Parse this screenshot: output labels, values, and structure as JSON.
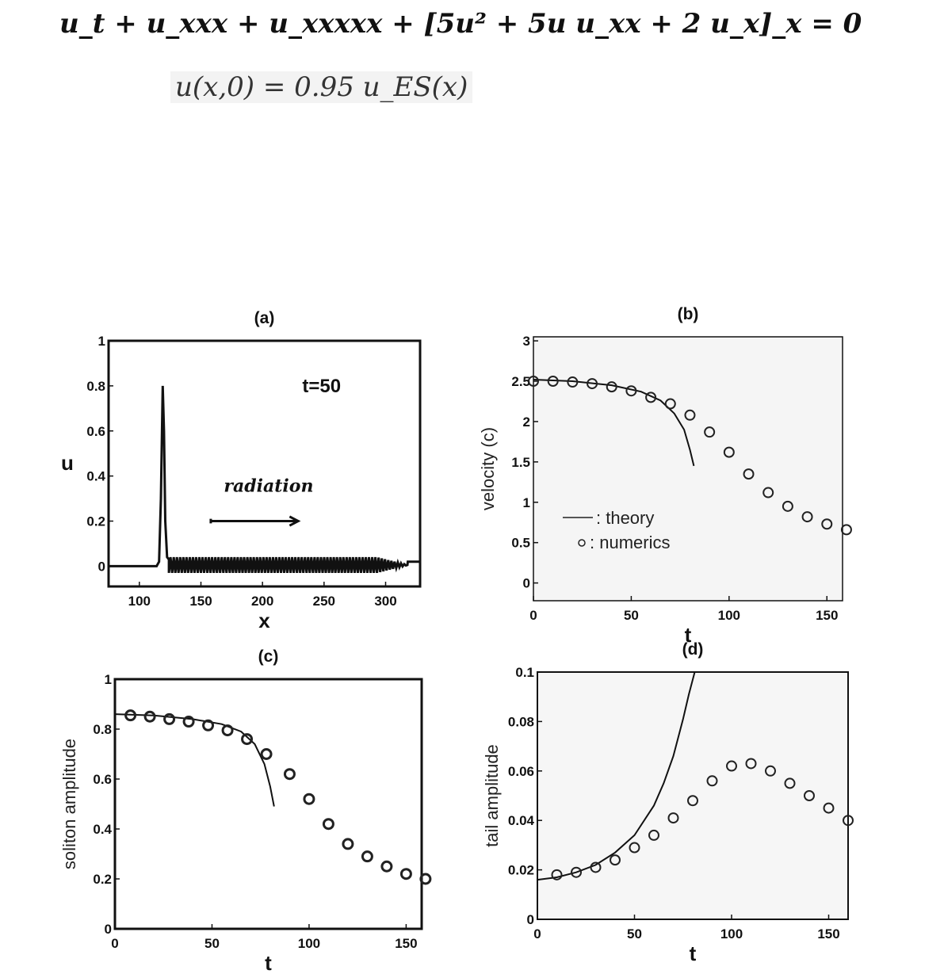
{
  "equations": {
    "pde": "u_t + u_xxx + u_xxxxx + [5u² + 5u u_xx + 2 u_x]_x = 0",
    "initial_condition": "u(x,0) = 0.95 u_ES(x)"
  },
  "chart_data": [
    {
      "id": "a",
      "type": "line",
      "title": "(a)",
      "xlabel": "x",
      "ylabel": "u",
      "xlim": [
        75,
        328
      ],
      "ylim": [
        -0.09,
        1
      ],
      "xticks": [
        100,
        150,
        200,
        250,
        300
      ],
      "yticks": [
        0,
        0.2,
        0.4,
        0.6,
        0.8,
        1
      ],
      "ytick_labels": [
        "0",
        "0.2",
        "0.4",
        "0.6",
        "0.8",
        "1"
      ],
      "annotations": [
        "t=50",
        "radiation"
      ],
      "series": [
        {
          "x": [
            75,
            114,
            116,
            117.5,
            119,
            120,
            121,
            122.5,
            124
          ],
          "y": [
            0,
            0,
            0.02,
            0.3,
            0.8,
            0.6,
            0.2,
            0.04,
            0.03
          ]
        }
      ],
      "radiation_oscillation": {
        "x_start": 124,
        "x_end": 318,
        "min": -0.03,
        "max": 0.04,
        "period": 2.6,
        "end_level": 0.02
      },
      "grid": false
    },
    {
      "id": "b",
      "type": "scatter",
      "title": "(b)",
      "xlabel": "t",
      "ylabel": "velocity (c)",
      "xlim": [
        0,
        158
      ],
      "ylim": [
        -0.22,
        3.05
      ],
      "xticks": [
        0,
        50,
        100,
        150
      ],
      "yticks": [
        0,
        0.5,
        1,
        1.5,
        2,
        2.5,
        3
      ],
      "ytick_labels": [
        "0",
        "0.5",
        "1",
        "1.5",
        "2",
        "2.5",
        "3"
      ],
      "legend": [
        ": theory",
        ": numerics"
      ],
      "legend_position": "bottom-left",
      "series": [
        {
          "name": "theory",
          "style": "line",
          "x": [
            0,
            20,
            40,
            55,
            65,
            72,
            77,
            80,
            82
          ],
          "y": [
            2.52,
            2.5,
            2.45,
            2.37,
            2.26,
            2.1,
            1.9,
            1.65,
            1.45
          ]
        },
        {
          "name": "numerics",
          "style": "circle",
          "x": [
            0,
            10,
            20,
            30,
            40,
            50,
            60,
            70,
            80,
            90,
            100,
            110,
            120,
            130,
            140,
            150,
            160
          ],
          "y": [
            2.5,
            2.5,
            2.49,
            2.47,
            2.43,
            2.38,
            2.3,
            2.22,
            2.08,
            1.87,
            1.62,
            1.35,
            1.12,
            0.95,
            0.82,
            0.73,
            0.66
          ]
        }
      ],
      "grid": false
    },
    {
      "id": "c",
      "type": "scatter",
      "title": "(c)",
      "xlabel": "t",
      "ylabel": "soliton amplitude",
      "xlim": [
        0,
        158
      ],
      "ylim": [
        0,
        1
      ],
      "xticks": [
        0,
        50,
        100,
        150
      ],
      "yticks": [
        0,
        0.2,
        0.4,
        0.6,
        0.8,
        1
      ],
      "ytick_labels": [
        "0",
        "0.2",
        "0.4",
        "0.6",
        "0.8",
        "1"
      ],
      "series": [
        {
          "name": "theory",
          "style": "line",
          "x": [
            0,
            20,
            40,
            55,
            65,
            72,
            77,
            80,
            82
          ],
          "y": [
            0.86,
            0.855,
            0.84,
            0.82,
            0.79,
            0.74,
            0.66,
            0.57,
            0.49
          ]
        },
        {
          "name": "numerics",
          "style": "circle",
          "x": [
            8,
            18,
            28,
            38,
            48,
            58,
            68,
            78,
            90,
            100,
            110,
            120,
            130,
            140,
            150,
            160
          ],
          "y": [
            0.855,
            0.85,
            0.84,
            0.83,
            0.815,
            0.795,
            0.76,
            0.7,
            0.62,
            0.52,
            0.42,
            0.34,
            0.29,
            0.25,
            0.22,
            0.2
          ]
        }
      ],
      "grid": false
    },
    {
      "id": "d",
      "type": "scatter",
      "title": "(d)",
      "xlabel": "t",
      "ylabel": "tail amplitude",
      "xlim": [
        0,
        160
      ],
      "ylim": [
        0,
        0.1
      ],
      "xticks": [
        0,
        50,
        100,
        150
      ],
      "yticks": [
        0,
        0.02,
        0.04,
        0.06,
        0.08,
        0.1
      ],
      "ytick_labels": [
        "0",
        "0.02",
        "0.04",
        "0.06",
        "0.08",
        "0.1"
      ],
      "series": [
        {
          "name": "theory",
          "style": "line",
          "x": [
            0,
            10,
            20,
            30,
            40,
            50,
            60,
            65,
            70,
            75,
            78,
            81
          ],
          "y": [
            0.016,
            0.017,
            0.019,
            0.022,
            0.027,
            0.034,
            0.046,
            0.055,
            0.066,
            0.081,
            0.091,
            0.1
          ]
        },
        {
          "name": "numerics",
          "style": "circle",
          "x": [
            10,
            20,
            30,
            40,
            50,
            60,
            70,
            80,
            90,
            100,
            110,
            120,
            130,
            140,
            150,
            160
          ],
          "y": [
            0.018,
            0.019,
            0.021,
            0.024,
            0.029,
            0.034,
            0.041,
            0.048,
            0.056,
            0.062,
            0.063,
            0.06,
            0.055,
            0.05,
            0.045,
            0.04
          ]
        }
      ],
      "grid": false
    }
  ]
}
